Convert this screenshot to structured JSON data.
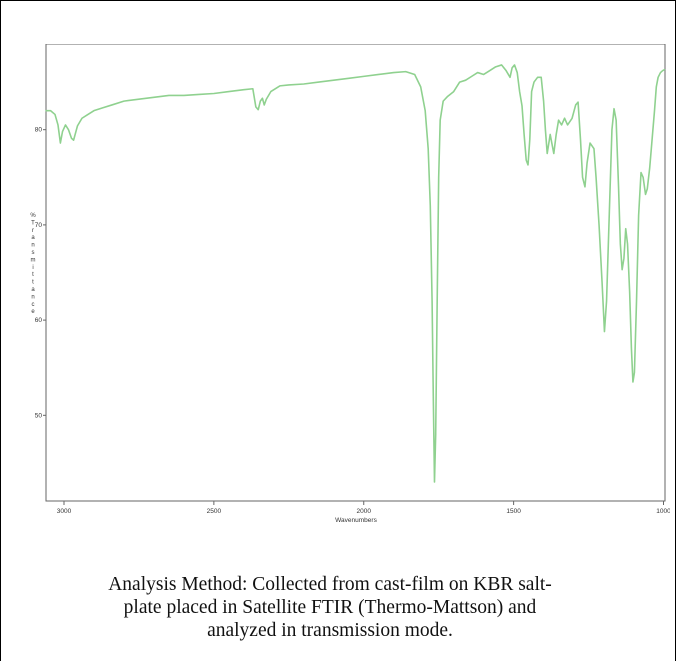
{
  "chart_data": {
    "type": "line",
    "title": "",
    "xlabel": "Wavenumbers",
    "ylabel": "% Transmittance",
    "ylabel_chars": [
      "%",
      "T",
      "r",
      "a",
      "n",
      "s",
      "m",
      "i",
      "t",
      "t",
      "a",
      "n",
      "c",
      "e"
    ],
    "xlim": [
      3060,
      995
    ],
    "ylim": [
      41,
      89
    ],
    "x_ticks": [
      3000,
      2500,
      2000,
      1500,
      1000
    ],
    "y_ticks": [
      50,
      60,
      70,
      80
    ],
    "grid": false,
    "line_color": "#8fd18f",
    "series": [
      {
        "points": [
          [
            3060,
            82.0
          ],
          [
            3045,
            82.0
          ],
          [
            3030,
            81.6
          ],
          [
            3020,
            80.5
          ],
          [
            3012,
            78.6
          ],
          [
            3005,
            79.8
          ],
          [
            2995,
            80.5
          ],
          [
            2985,
            80.0
          ],
          [
            2975,
            79.1
          ],
          [
            2968,
            78.9
          ],
          [
            2955,
            80.4
          ],
          [
            2940,
            81.2
          ],
          [
            2920,
            81.6
          ],
          [
            2900,
            82.0
          ],
          [
            2870,
            82.3
          ],
          [
            2840,
            82.6
          ],
          [
            2800,
            83.0
          ],
          [
            2750,
            83.2
          ],
          [
            2700,
            83.4
          ],
          [
            2650,
            83.6
          ],
          [
            2600,
            83.6
          ],
          [
            2550,
            83.7
          ],
          [
            2500,
            83.8
          ],
          [
            2450,
            84.0
          ],
          [
            2400,
            84.2
          ],
          [
            2370,
            84.3
          ],
          [
            2360,
            82.4
          ],
          [
            2352,
            82.1
          ],
          [
            2345,
            83.0
          ],
          [
            2338,
            83.3
          ],
          [
            2332,
            82.6
          ],
          [
            2325,
            83.2
          ],
          [
            2310,
            84.0
          ],
          [
            2280,
            84.6
          ],
          [
            2250,
            84.7
          ],
          [
            2200,
            84.8
          ],
          [
            2150,
            85.0
          ],
          [
            2100,
            85.2
          ],
          [
            2050,
            85.4
          ],
          [
            2000,
            85.6
          ],
          [
            1950,
            85.8
          ],
          [
            1900,
            86.0
          ],
          [
            1860,
            86.1
          ],
          [
            1830,
            85.8
          ],
          [
            1810,
            84.5
          ],
          [
            1795,
            82.0
          ],
          [
            1785,
            78.0
          ],
          [
            1778,
            72.0
          ],
          [
            1772,
            62.0
          ],
          [
            1768,
            52.0
          ],
          [
            1764,
            43.0
          ],
          [
            1760,
            48.0
          ],
          [
            1755,
            62.0
          ],
          [
            1750,
            75.0
          ],
          [
            1745,
            81.0
          ],
          [
            1735,
            83.0
          ],
          [
            1720,
            83.5
          ],
          [
            1700,
            84.0
          ],
          [
            1680,
            85.0
          ],
          [
            1660,
            85.2
          ],
          [
            1640,
            85.6
          ],
          [
            1620,
            86.0
          ],
          [
            1600,
            85.8
          ],
          [
            1580,
            86.2
          ],
          [
            1560,
            86.6
          ],
          [
            1540,
            86.8
          ],
          [
            1525,
            86.2
          ],
          [
            1512,
            85.5
          ],
          [
            1505,
            86.5
          ],
          [
            1497,
            86.8
          ],
          [
            1488,
            86.0
          ],
          [
            1480,
            84.0
          ],
          [
            1472,
            82.5
          ],
          [
            1465,
            79.5
          ],
          [
            1458,
            76.8
          ],
          [
            1452,
            76.3
          ],
          [
            1446,
            79.0
          ],
          [
            1440,
            84.0
          ],
          [
            1432,
            85.0
          ],
          [
            1420,
            85.5
          ],
          [
            1408,
            85.5
          ],
          [
            1400,
            83.0
          ],
          [
            1394,
            80.0
          ],
          [
            1388,
            77.5
          ],
          [
            1383,
            78.5
          ],
          [
            1378,
            79.5
          ],
          [
            1372,
            78.5
          ],
          [
            1366,
            77.5
          ],
          [
            1358,
            79.5
          ],
          [
            1350,
            81.0
          ],
          [
            1340,
            80.5
          ],
          [
            1330,
            81.2
          ],
          [
            1320,
            80.5
          ],
          [
            1305,
            81.2
          ],
          [
            1293,
            82.6
          ],
          [
            1285,
            82.9
          ],
          [
            1277,
            79.0
          ],
          [
            1270,
            75.0
          ],
          [
            1262,
            74.0
          ],
          [
            1255,
            76.5
          ],
          [
            1245,
            78.6
          ],
          [
            1232,
            78.0
          ],
          [
            1225,
            75.0
          ],
          [
            1215,
            70.0
          ],
          [
            1205,
            64.0
          ],
          [
            1197,
            58.8
          ],
          [
            1190,
            62.0
          ],
          [
            1180,
            72.0
          ],
          [
            1172,
            80.0
          ],
          [
            1165,
            82.2
          ],
          [
            1158,
            81.0
          ],
          [
            1150,
            74.0
          ],
          [
            1144,
            68.0
          ],
          [
            1138,
            65.3
          ],
          [
            1132,
            66.5
          ],
          [
            1126,
            69.6
          ],
          [
            1120,
            68.0
          ],
          [
            1113,
            63.0
          ],
          [
            1107,
            57.0
          ],
          [
            1102,
            53.5
          ],
          [
            1097,
            54.5
          ],
          [
            1090,
            62.0
          ],
          [
            1083,
            71.0
          ],
          [
            1075,
            75.5
          ],
          [
            1068,
            75.0
          ],
          [
            1060,
            73.2
          ],
          [
            1054,
            73.8
          ],
          [
            1046,
            76.0
          ],
          [
            1038,
            79.0
          ],
          [
            1030,
            82.0
          ],
          [
            1024,
            84.5
          ],
          [
            1018,
            85.5
          ],
          [
            1010,
            86.0
          ],
          [
            1003,
            86.2
          ],
          [
            997,
            86.3
          ]
        ]
      }
    ]
  },
  "caption": {
    "lines": [
      "Analysis Method: Collected from cast-film on KBR salt-",
      "plate placed in Satellite FTIR (Thermo-Mattson) and",
      "analyzed in transmission mode."
    ]
  }
}
